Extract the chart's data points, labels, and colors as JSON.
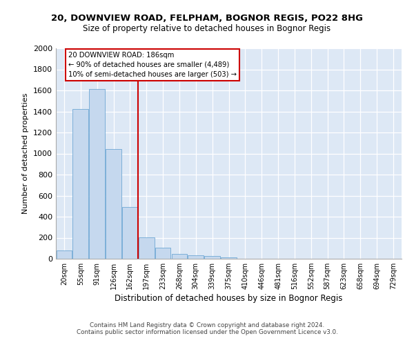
{
  "title_line1": "20, DOWNVIEW ROAD, FELPHAM, BOGNOR REGIS, PO22 8HG",
  "title_line2": "Size of property relative to detached houses in Bognor Regis",
  "xlabel": "Distribution of detached houses by size in Bognor Regis",
  "ylabel": "Number of detached properties",
  "bar_labels": [
    "20sqm",
    "55sqm",
    "91sqm",
    "126sqm",
    "162sqm",
    "197sqm",
    "233sqm",
    "268sqm",
    "304sqm",
    "339sqm",
    "375sqm",
    "410sqm",
    "446sqm",
    "481sqm",
    "516sqm",
    "552sqm",
    "587sqm",
    "623sqm",
    "658sqm",
    "694sqm",
    "729sqm"
  ],
  "bar_values": [
    80,
    1420,
    1610,
    1045,
    490,
    205,
    105,
    45,
    35,
    25,
    15,
    0,
    0,
    0,
    0,
    0,
    0,
    0,
    0,
    0,
    0
  ],
  "bar_color": "#c5d8ee",
  "bar_edge_color": "#6fa8d4",
  "vline_index": 4.5,
  "vline_color": "#cc0000",
  "annotation_line1": "20 DOWNVIEW ROAD: 186sqm",
  "annotation_line2": "← 90% of detached houses are smaller (4,489)",
  "annotation_line3": "10% of semi-detached houses are larger (503) →",
  "annotation_box_fc": "#ffffff",
  "annotation_box_ec": "#cc0000",
  "ylim_max": 2000,
  "ytick_step": 200,
  "bg_color": "#dde8f5",
  "grid_color": "#ffffff",
  "footer_line1": "Contains HM Land Registry data © Crown copyright and database right 2024.",
  "footer_line2": "Contains public sector information licensed under the Open Government Licence v3.0."
}
